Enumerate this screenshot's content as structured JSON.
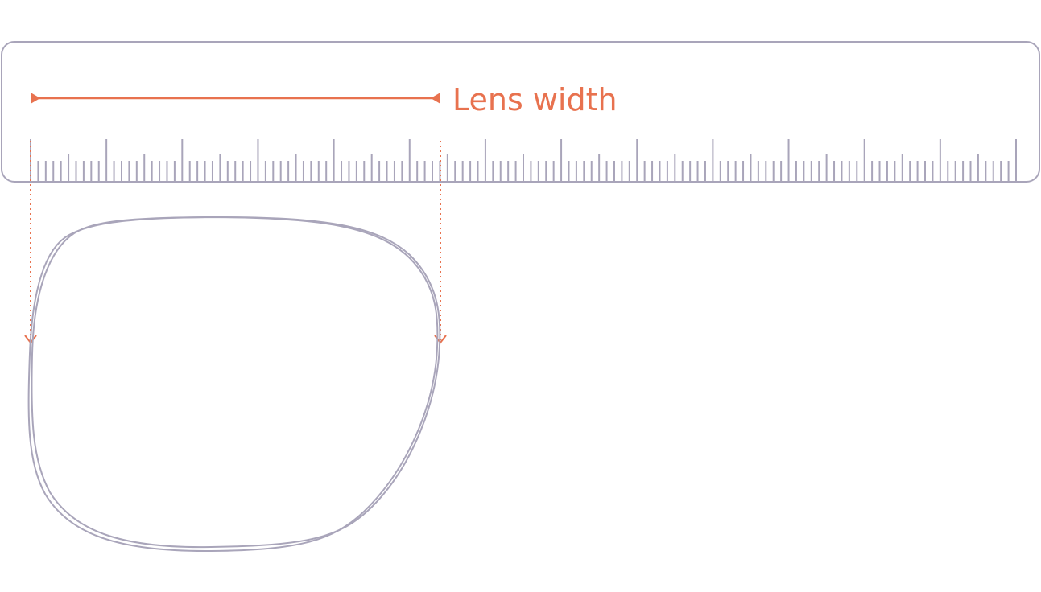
{
  "label": "Lens width"
}
